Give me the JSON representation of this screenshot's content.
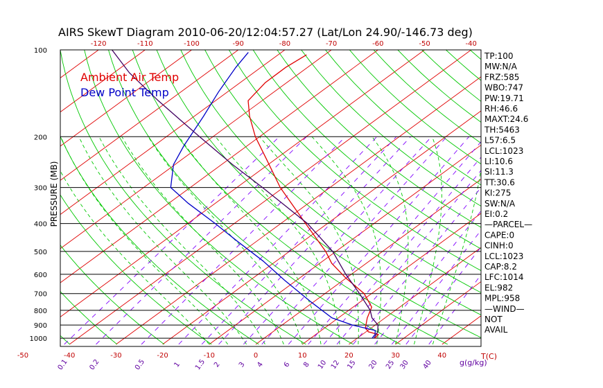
{
  "chart_data": {
    "type": "line",
    "title": "AIRS SkewT Diagram 2010-06-20/12:04:57.27 (Lat/Lon 24.90/-146.73 deg)",
    "ylabel": "PRESSURE (MB)",
    "xlabel": "T(C)",
    "mixing_label": "g(g/kg)",
    "y_scale": "log",
    "ylim": [
      1050,
      100
    ],
    "pressure_ticks": [
      100,
      200,
      300,
      400,
      500,
      600,
      700,
      800,
      900,
      1000
    ],
    "pressure_tick_labels": [
      "100",
      "200",
      "300",
      "400",
      "500",
      "600",
      "700",
      "800",
      "900",
      "1000"
    ],
    "top_temp_ticks": [
      -120,
      -110,
      -100,
      -90,
      -80,
      -70,
      -60,
      -50,
      -40
    ],
    "top_temp_labels": [
      "-120",
      "-110",
      "-100",
      "-90",
      "-80",
      "-70",
      "-60",
      "-50",
      "-40"
    ],
    "bottom_temp_ticks": [
      -50,
      -40,
      -30,
      -20,
      -10,
      0,
      10,
      20,
      30,
      40
    ],
    "bottom_temp_labels": [
      "-50",
      "-40",
      "-30",
      "-20",
      "-10",
      "0",
      "10",
      "20",
      "30",
      "40"
    ],
    "mixing_ratios": [
      0.1,
      0.2,
      0.5,
      1,
      1.5,
      2,
      3,
      4,
      6,
      8,
      10,
      12,
      15,
      20,
      25,
      30,
      40
    ],
    "mixing_labels": [
      "0.1",
      "0.2",
      "0.5",
      "1",
      "1.5",
      "2",
      "3",
      "4",
      "6",
      "8",
      "10",
      "12",
      "15",
      "20",
      "25",
      "30",
      "40"
    ],
    "series": [
      {
        "name": "Ambient Air Temp",
        "color": "#e00000",
        "points": [
          {
            "p": 1000,
            "t": 23.8
          },
          {
            "p": 970,
            "t": 23.4
          },
          {
            "p": 950,
            "t": 20.5
          },
          {
            "p": 920,
            "t": 18.7
          },
          {
            "p": 850,
            "t": 16.2
          },
          {
            "p": 780,
            "t": 14.0
          },
          {
            "p": 700,
            "t": 8.4
          },
          {
            "p": 620,
            "t": 0.1
          },
          {
            "p": 550,
            "t": -7.4
          },
          {
            "p": 500,
            "t": -12.2
          },
          {
            "p": 400,
            "t": -24.7
          },
          {
            "p": 330,
            "t": -35.4
          },
          {
            "p": 300,
            "t": -40.7
          },
          {
            "p": 240,
            "t": -51.8
          },
          {
            "p": 200,
            "t": -60.9
          },
          {
            "p": 170,
            "t": -68.1
          },
          {
            "p": 150,
            "t": -73.0
          },
          {
            "p": 130,
            "t": -74.6
          },
          {
            "p": 115,
            "t": -74.7
          },
          {
            "p": 104,
            "t": -73.9
          }
        ]
      },
      {
        "name": "Dew Point Temp",
        "color": "#0000c8",
        "points": [
          {
            "p": 1000,
            "t": 23.2
          },
          {
            "p": 970,
            "t": 22.7
          },
          {
            "p": 940,
            "t": 21.6
          },
          {
            "p": 900,
            "t": 15.1
          },
          {
            "p": 850,
            "t": 8.6
          },
          {
            "p": 750,
            "t": -0.4
          },
          {
            "p": 630,
            "t": -12.5
          },
          {
            "p": 540,
            "t": -22.8
          },
          {
            "p": 460,
            "t": -34.3
          },
          {
            "p": 400,
            "t": -44.1
          },
          {
            "p": 340,
            "t": -55.9
          },
          {
            "p": 300,
            "t": -64.2
          },
          {
            "p": 250,
            "t": -70.3
          },
          {
            "p": 215,
            "t": -73.6
          },
          {
            "p": 170,
            "t": -78.0
          },
          {
            "p": 140,
            "t": -81.9
          },
          {
            "p": 115,
            "t": -85.4
          },
          {
            "p": 102,
            "t": -87.1
          }
        ]
      },
      {
        "name": "",
        "color": "#400060",
        "points": [
          {
            "p": 1000,
            "t": 23.6
          },
          {
            "p": 950,
            "t": 22.5
          },
          {
            "p": 900,
            "t": 20.6
          },
          {
            "p": 850,
            "t": 17.2
          },
          {
            "p": 800,
            "t": 14.6
          },
          {
            "p": 700,
            "t": 7.4
          },
          {
            "p": 600,
            "t": -1.2
          },
          {
            "p": 500,
            "t": -10.7
          },
          {
            "p": 400,
            "t": -24.3
          },
          {
            "p": 300,
            "t": -44.5
          },
          {
            "p": 250,
            "t": -57.6
          },
          {
            "p": 200,
            "t": -72.9
          },
          {
            "p": 150,
            "t": -92.3
          },
          {
            "p": 120,
            "t": -106.7
          },
          {
            "p": 100,
            "t": -117.1
          }
        ]
      }
    ],
    "legend": [
      "Ambient Air Temp",
      "Dew Point Temp"
    ],
    "legend_colors": [
      "#e00000",
      "#0000c8"
    ],
    "indices": [
      "TP:100",
      "MW:N/A",
      "FRZ:585",
      "WBO:747",
      "PW:19.71",
      "RH:46.6",
      "MAXT:24.6",
      "TH:5463",
      "L57:6.5",
      "LCL:1023",
      "LI:10.6",
      "SI:11.3",
      "TT:30.6",
      "KI:275",
      "SW:N/A",
      "EI:0.2",
      "—PARCEL—",
      "CAPE:0",
      "CINH:0",
      "LCL:1023",
      "CAP:8.2",
      "LFC:1014",
      "EL:982",
      "MPL:958",
      "—WIND—",
      "NOT",
      "AVAIL"
    ],
    "grid": true
  },
  "colors": {
    "isotherm": "#e00000",
    "dry_adiabat": "#00c800",
    "moist_adiabat": "#00c800",
    "mixing_line": "#8000ff",
    "isobar": "#000000",
    "frame": "#000000",
    "top_axis_text": "#c00000",
    "bottom_axis_text": "#c00000",
    "mixing_text": "#6000a0"
  }
}
